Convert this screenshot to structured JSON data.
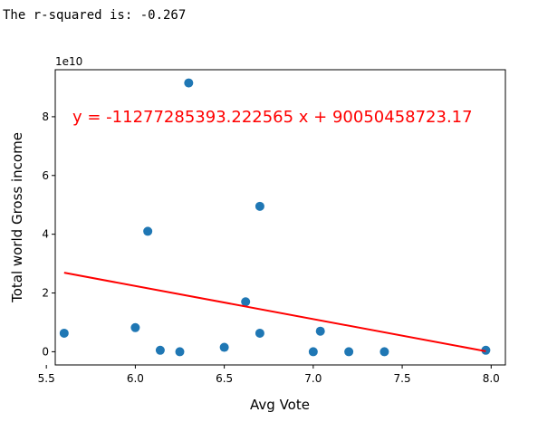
{
  "output": {
    "text": "The r-squared is: -0.267"
  },
  "chart_data": {
    "type": "scatter",
    "title": "",
    "xlabel": "Avg Vote",
    "ylabel": "Total world Gross income",
    "y_offset_label": "1e10",
    "xlim": [
      5.55,
      8.08
    ],
    "ylim": [
      -0.45,
      9.6
    ],
    "y_scale_factor": 10000000000,
    "x_ticks": [
      5.5,
      6.0,
      6.5,
      7.0,
      7.5,
      8.0
    ],
    "x_tick_labels": [
      "5.5",
      "6.0",
      "6.5",
      "7.0",
      "7.5",
      "8.0"
    ],
    "y_ticks": [
      0,
      2,
      4,
      6,
      8
    ],
    "y_tick_labels": [
      "0",
      "2",
      "4",
      "6",
      "8"
    ],
    "grid": false,
    "x": [
      5.6,
      6.0,
      6.07,
      6.14,
      6.25,
      6.3,
      6.5,
      6.62,
      6.7,
      6.7,
      7.0,
      7.04,
      7.2,
      7.4,
      7.97
    ],
    "y": [
      0.63,
      0.82,
      4.1,
      0.05,
      0.0,
      9.15,
      0.15,
      1.7,
      4.95,
      0.63,
      0.0,
      0.7,
      0.0,
      0.0,
      0.05
    ],
    "point_color": "#1f77b4",
    "regression": {
      "equation": "y = -11277285393.222565 x + 90050458723.17",
      "slope": -11277285393.222565,
      "intercept": 90050458723.17,
      "x_start": 5.6,
      "x_end": 7.97,
      "color": "#ff0000"
    }
  }
}
